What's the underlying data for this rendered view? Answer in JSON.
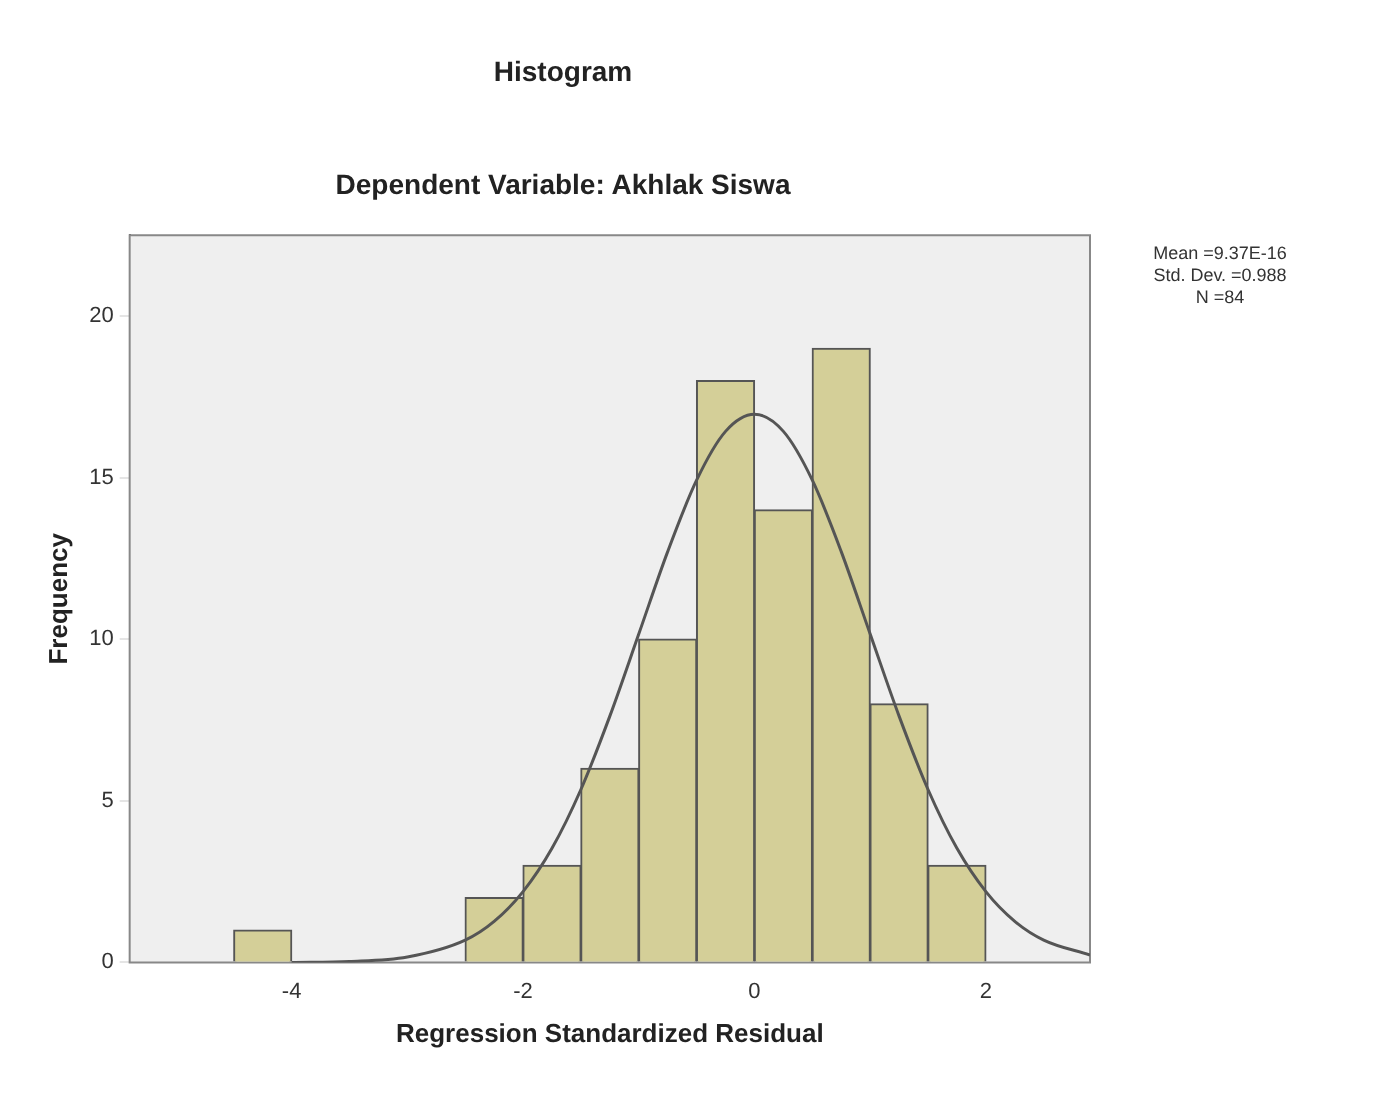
{
  "chart_data": {
    "type": "histogram",
    "title": "Histogram",
    "subtitle": "Dependent Variable: Akhlak Siswa",
    "xlabel": "Regression Standardized Residual",
    "ylabel": "Frequency",
    "bins": [
      -4.5,
      -4,
      -3.5,
      -3,
      -2.5,
      -2,
      -1.5,
      -1,
      -0.5,
      0,
      0.5,
      1,
      1.5,
      2
    ],
    "values": [
      1,
      0,
      0,
      0,
      2,
      3,
      6,
      10,
      18,
      14,
      19,
      8,
      3
    ],
    "color": "#d4cf98",
    "series": [
      {
        "type": "line",
        "color": "#555555",
        "x": [
          -4,
          -3.5,
          -3,
          -2.5,
          -2.25,
          -2,
          -1.75,
          -1.5,
          -1.25,
          -1,
          -0.75,
          -0.5,
          -0.25,
          0,
          0.25,
          0.5,
          0.75,
          1,
          1.25,
          1.5,
          1.75,
          2,
          2.25,
          2.5,
          2.9
        ],
        "values": [
          0,
          0.03,
          0.17,
          0.69,
          1.27,
          2.19,
          3.53,
          5.35,
          7.62,
          10.16,
          12.71,
          14.92,
          16.43,
          16.96,
          16.43,
          14.92,
          12.71,
          10.16,
          7.62,
          5.35,
          3.53,
          2.19,
          1.27,
          0.69,
          0.23
        ]
      }
    ],
    "xlim": [
      -5.4,
      2.9
    ],
    "xticks": [
      -4,
      -2,
      0,
      2
    ],
    "ylim": [
      0,
      22.5
    ],
    "yticks": [
      0,
      5,
      10,
      15,
      20
    ],
    "grid": false,
    "legend": false,
    "marker": "none",
    "annotations": [
      "Mean =9.37E-16",
      "Std. Dev. =0.988",
      "N =84"
    ]
  }
}
